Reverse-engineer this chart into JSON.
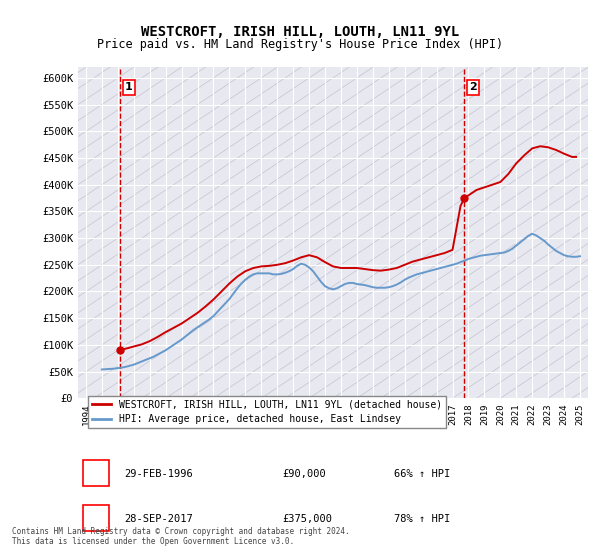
{
  "title": "WESTCROFT, IRISH HILL, LOUTH, LN11 9YL",
  "subtitle": "Price paid vs. HM Land Registry's House Price Index (HPI)",
  "ylabel": "",
  "background_color": "#ffffff",
  "grid_color": "#cccccc",
  "plot_bg_color": "#e8e8f0",
  "hpi_line_color": "#6699cc",
  "price_line_color": "#cc0000",
  "dashed_line_color": "#cc0000",
  "sale1_date_num": 1996.16,
  "sale1_price": 90000,
  "sale1_label": "1",
  "sale2_date_num": 2017.74,
  "sale2_price": 375000,
  "sale2_label": "2",
  "ylim": [
    0,
    620000
  ],
  "xlim": [
    1993.5,
    2025.5
  ],
  "yticks": [
    0,
    50000,
    100000,
    150000,
    200000,
    250000,
    300000,
    350000,
    400000,
    450000,
    500000,
    550000,
    600000
  ],
  "ytick_labels": [
    "£0",
    "£50K",
    "£100K",
    "£150K",
    "£200K",
    "£250K",
    "£300K",
    "£350K",
    "£400K",
    "£450K",
    "£500K",
    "£550K",
    "£600K"
  ],
  "xticks": [
    1994,
    1995,
    1996,
    1997,
    1998,
    1999,
    2000,
    2001,
    2002,
    2003,
    2004,
    2005,
    2006,
    2007,
    2008,
    2009,
    2010,
    2011,
    2012,
    2013,
    2014,
    2015,
    2016,
    2017,
    2018,
    2019,
    2020,
    2021,
    2022,
    2023,
    2024,
    2025
  ],
  "legend_label_price": "WESTCROFT, IRISH HILL, LOUTH, LN11 9YL (detached house)",
  "legend_label_hpi": "HPI: Average price, detached house, East Lindsey",
  "annotation1_text": "1",
  "annotation2_text": "2",
  "table_row1": [
    "1",
    "29-FEB-1996",
    "£90,000",
    "66% ↑ HPI"
  ],
  "table_row2": [
    "2",
    "28-SEP-2017",
    "£375,000",
    "78% ↑ HPI"
  ],
  "footer": "Contains HM Land Registry data © Crown copyright and database right 2024.\nThis data is licensed under the Open Government Licence v3.0.",
  "hpi_data_x": [
    1995.0,
    1995.25,
    1995.5,
    1995.75,
    1996.0,
    1996.25,
    1996.5,
    1996.75,
    1997.0,
    1997.25,
    1997.5,
    1997.75,
    1998.0,
    1998.25,
    1998.5,
    1998.75,
    1999.0,
    1999.25,
    1999.5,
    1999.75,
    2000.0,
    2000.25,
    2000.5,
    2000.75,
    2001.0,
    2001.25,
    2001.5,
    2001.75,
    2002.0,
    2002.25,
    2002.5,
    2002.75,
    2003.0,
    2003.25,
    2003.5,
    2003.75,
    2004.0,
    2004.25,
    2004.5,
    2004.75,
    2005.0,
    2005.25,
    2005.5,
    2005.75,
    2006.0,
    2006.25,
    2006.5,
    2006.75,
    2007.0,
    2007.25,
    2007.5,
    2007.75,
    2008.0,
    2008.25,
    2008.5,
    2008.75,
    2009.0,
    2009.25,
    2009.5,
    2009.75,
    2010.0,
    2010.25,
    2010.5,
    2010.75,
    2011.0,
    2011.25,
    2011.5,
    2011.75,
    2012.0,
    2012.25,
    2012.5,
    2012.75,
    2013.0,
    2013.25,
    2013.5,
    2013.75,
    2014.0,
    2014.25,
    2014.5,
    2014.75,
    2015.0,
    2015.25,
    2015.5,
    2015.75,
    2016.0,
    2016.25,
    2016.5,
    2016.75,
    2017.0,
    2017.25,
    2017.5,
    2017.75,
    2018.0,
    2018.25,
    2018.5,
    2018.75,
    2019.0,
    2019.25,
    2019.5,
    2019.75,
    2020.0,
    2020.25,
    2020.5,
    2020.75,
    2021.0,
    2021.25,
    2021.5,
    2021.75,
    2022.0,
    2022.25,
    2022.5,
    2022.75,
    2023.0,
    2023.25,
    2023.5,
    2023.75,
    2024.0,
    2024.25,
    2024.5,
    2024.75,
    2025.0
  ],
  "hpi_data_y": [
    54000,
    54500,
    55000,
    55500,
    56500,
    57500,
    59000,
    61000,
    63000,
    66000,
    69000,
    72000,
    75000,
    78000,
    82000,
    86000,
    90000,
    95000,
    100000,
    105000,
    110000,
    116000,
    122000,
    128000,
    133000,
    138000,
    143000,
    148000,
    154000,
    162000,
    170000,
    178000,
    186000,
    196000,
    206000,
    215000,
    222000,
    228000,
    232000,
    234000,
    234000,
    234000,
    234000,
    232000,
    232000,
    233000,
    235000,
    238000,
    242000,
    248000,
    252000,
    250000,
    245000,
    238000,
    228000,
    218000,
    210000,
    206000,
    204000,
    206000,
    210000,
    214000,
    216000,
    216000,
    214000,
    213000,
    212000,
    210000,
    208000,
    207000,
    207000,
    207000,
    208000,
    210000,
    213000,
    217000,
    222000,
    226000,
    229000,
    232000,
    234000,
    236000,
    238000,
    240000,
    242000,
    244000,
    246000,
    248000,
    250000,
    252000,
    255000,
    258000,
    261000,
    263000,
    265000,
    267000,
    268000,
    269000,
    270000,
    271000,
    272000,
    273000,
    276000,
    280000,
    286000,
    292000,
    298000,
    304000,
    308000,
    305000,
    300000,
    295000,
    288000,
    282000,
    276000,
    272000,
    268000,
    266000,
    265000,
    265000,
    266000
  ],
  "price_data_x": [
    1996.16,
    1996.5,
    1997.0,
    1997.5,
    1998.0,
    1998.5,
    1999.0,
    1999.5,
    2000.0,
    2000.5,
    2001.0,
    2001.5,
    2002.0,
    2002.5,
    2003.0,
    2003.5,
    2004.0,
    2004.5,
    2005.0,
    2005.5,
    2006.0,
    2006.5,
    2007.0,
    2007.5,
    2008.0,
    2008.5,
    2009.0,
    2009.5,
    2010.0,
    2010.5,
    2011.0,
    2011.5,
    2012.0,
    2012.5,
    2013.0,
    2013.5,
    2014.0,
    2014.5,
    2015.0,
    2015.5,
    2016.0,
    2016.5,
    2017.0,
    2017.5,
    2017.74,
    2018.0,
    2018.5,
    2019.0,
    2019.5,
    2020.0,
    2020.5,
    2021.0,
    2021.5,
    2022.0,
    2022.5,
    2023.0,
    2023.5,
    2024.0,
    2024.5,
    2024.75
  ],
  "price_data_y": [
    90000,
    93000,
    97000,
    101000,
    107000,
    115000,
    124000,
    132000,
    140000,
    150000,
    160000,
    172000,
    185000,
    200000,
    215000,
    228000,
    238000,
    244000,
    247000,
    248000,
    250000,
    253000,
    258000,
    264000,
    268000,
    264000,
    255000,
    247000,
    244000,
    244000,
    244000,
    242000,
    240000,
    239000,
    241000,
    244000,
    250000,
    256000,
    260000,
    264000,
    268000,
    272000,
    278000,
    360000,
    375000,
    380000,
    390000,
    395000,
    400000,
    405000,
    420000,
    440000,
    455000,
    468000,
    472000,
    470000,
    465000,
    458000,
    452000,
    452000
  ]
}
